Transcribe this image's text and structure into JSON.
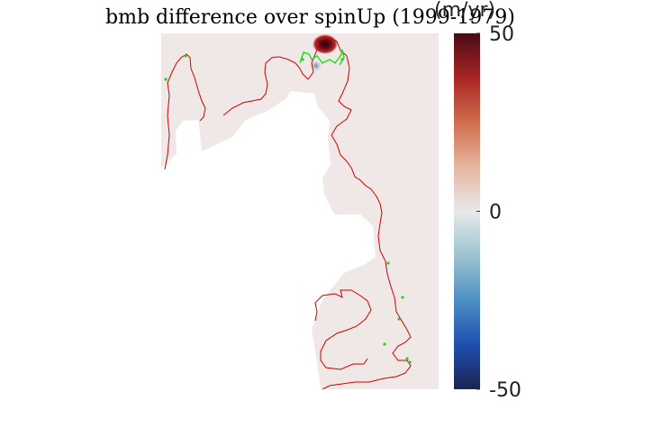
{
  "chart_data": {
    "type": "heatmap",
    "title": "bmb difference over spinUp (1999-1979)",
    "colorbar": {
      "units_label": "(m/yr)",
      "ticks": [
        50,
        0,
        -50
      ],
      "range": [
        -50,
        50
      ],
      "colormap": [
        "#1b2350",
        "#1f4fb0",
        "#4d8fc4",
        "#9cc3cf",
        "#e7e9e9",
        "#e6b59f",
        "#cf6e4d",
        "#a82525",
        "#4a0a14"
      ]
    },
    "map": {
      "background_value": 0,
      "ice_mask_color": "#ffffff",
      "background_color": "#efe8e7",
      "grounding_line_color": "#d00000",
      "calving_front_color": "#11dd11",
      "hotspot_melt_max": 50,
      "hotspot_freeze_min": -15
    }
  }
}
